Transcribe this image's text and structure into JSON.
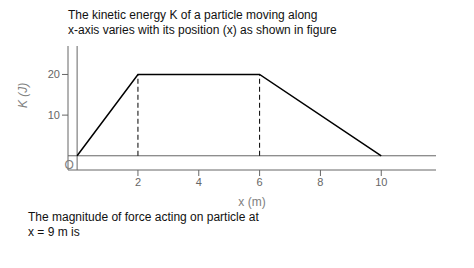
{
  "chart_data": {
    "type": "line",
    "title": [
      "The kinetic energy K of a particle moving along",
      "x-axis varies with its position (x) as shown in figure"
    ],
    "caption": [
      "The magnitude of force acting on particle at",
      "x = 9 m is"
    ],
    "x": [
      0,
      2,
      6,
      10
    ],
    "values": [
      0,
      20,
      20,
      0
    ],
    "color": "#000000",
    "xlabel": "x (m)",
    "ylabel": "K (J)",
    "origin_label": "O",
    "xlim": [
      -0.3,
      11.8
    ],
    "ylim": [
      -3.5,
      27
    ],
    "xticks": [
      2,
      4,
      6,
      8,
      10
    ],
    "yticks": [
      10,
      20
    ],
    "vlines": [
      {
        "x": 2,
        "y": [
          0,
          20
        ]
      },
      {
        "x": 6,
        "y": [
          0,
          20
        ]
      }
    ],
    "grid": false
  }
}
